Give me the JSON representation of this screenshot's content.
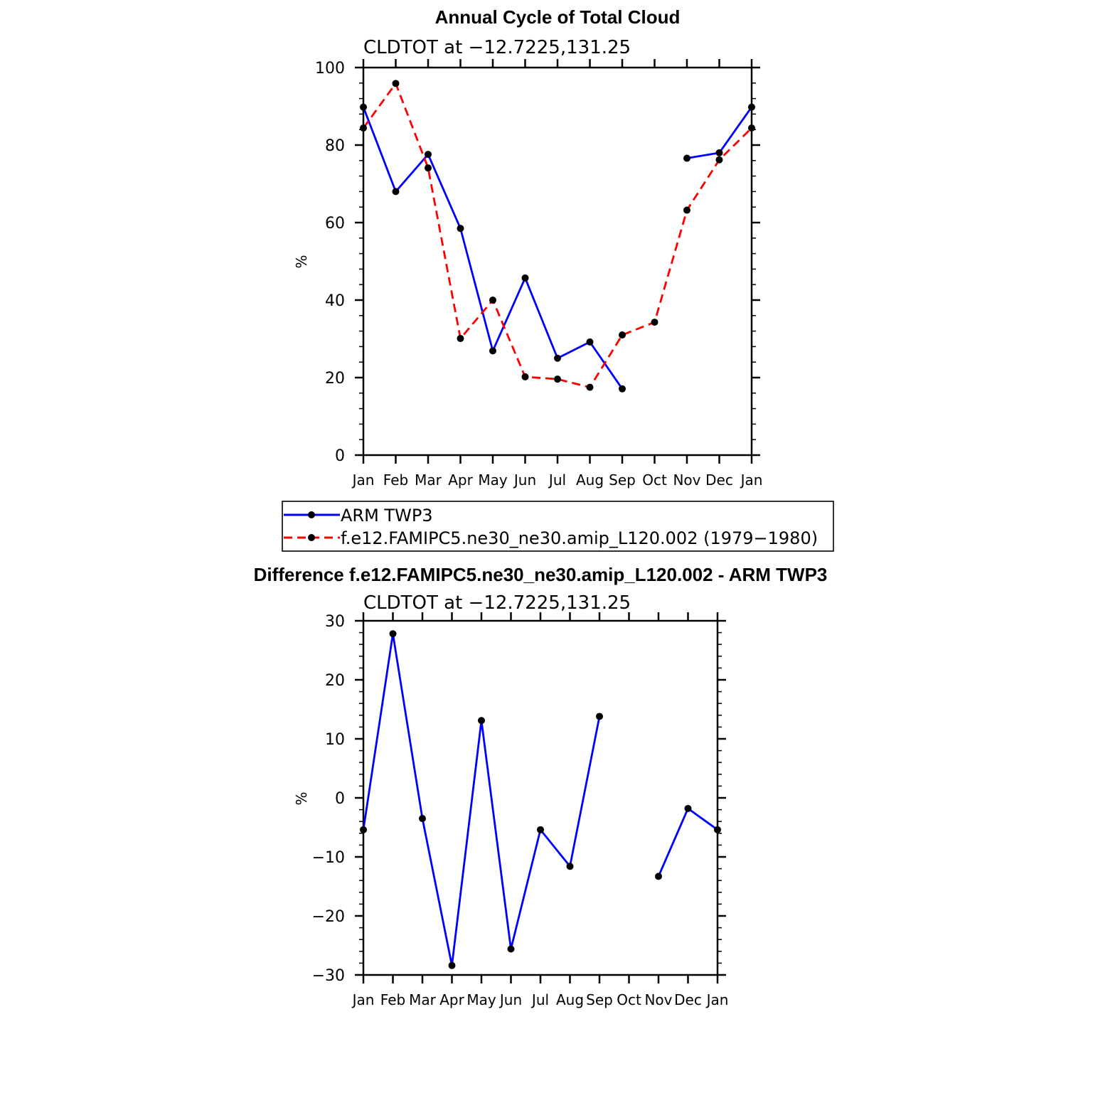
{
  "chart_data": [
    {
      "type": "line",
      "title": "Annual Cycle of Total Cloud",
      "subtitle": "CLDTOT at −12.7225,131.25",
      "xlabel": "",
      "ylabel": "%",
      "categories": [
        "Jan",
        "Feb",
        "Mar",
        "Apr",
        "May",
        "Jun",
        "Jul",
        "Aug",
        "Sep",
        "Oct",
        "Nov",
        "Dec",
        "Jan"
      ],
      "ylim": [
        0,
        100
      ],
      "yticks": [
        "0",
        "20",
        "40",
        "60",
        "80",
        "100"
      ],
      "series": [
        {
          "name": "ARM TWP3",
          "color": "#0000ff",
          "dashed": false,
          "values": [
            89.8,
            68.0,
            77.6,
            58.5,
            26.9,
            45.7,
            25.0,
            29.2,
            17.1,
            null,
            76.6,
            78.0,
            89.8
          ]
        },
        {
          "name": "f.e12.FAMIPC5.ne30_ne30.amip_L120.002 (1979−1980)",
          "color": "#ff0000",
          "dashed": true,
          "values": [
            84.4,
            95.9,
            74.1,
            30.1,
            40.0,
            20.2,
            19.6,
            17.5,
            31.0,
            34.3,
            63.2,
            76.2,
            84.4
          ]
        }
      ]
    },
    {
      "type": "line",
      "title": "Difference f.e12.FAMIPC5.ne30_ne30.amip_L120.002 - ARM TWP3",
      "subtitle": "CLDTOT at −12.7225,131.25",
      "xlabel": "",
      "ylabel": "%",
      "categories": [
        "Jan",
        "Feb",
        "Mar",
        "Apr",
        "May",
        "Jun",
        "Jul",
        "Aug",
        "Sep",
        "Oct",
        "Nov",
        "Dec",
        "Jan"
      ],
      "ylim": [
        -30,
        30
      ],
      "yticks": [
        "−30",
        "−20",
        "−10",
        "0",
        "10",
        "20",
        "30"
      ],
      "series": [
        {
          "name": "Difference",
          "color": "#0000ff",
          "dashed": false,
          "values": [
            -5.4,
            27.8,
            -3.5,
            -28.4,
            13.1,
            -25.6,
            -5.4,
            -11.6,
            13.8,
            null,
            -13.3,
            -1.8,
            -5.4
          ]
        }
      ]
    }
  ]
}
